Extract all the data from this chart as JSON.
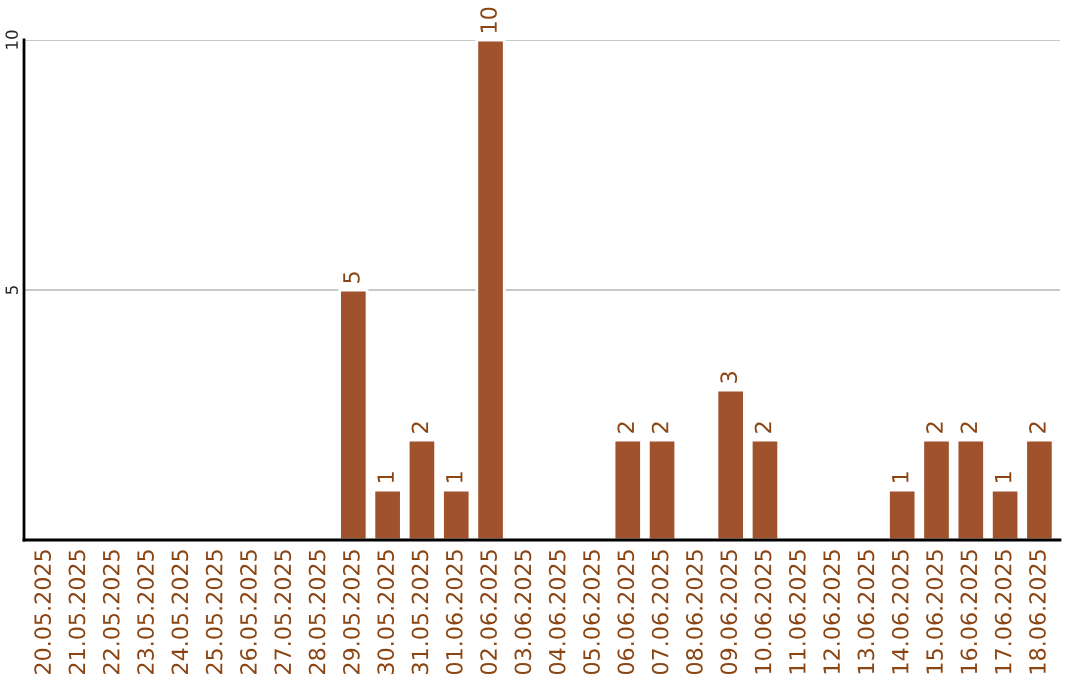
{
  "chart_data": {
    "type": "bar",
    "categories": [
      "20.05.2025",
      "21.05.2025",
      "22.05.2025",
      "23.05.2025",
      "24.05.2025",
      "25.05.2025",
      "26.05.2025",
      "27.05.2025",
      "28.05.2025",
      "29.05.2025",
      "30.05.2025",
      "31.05.2025",
      "01.06.2025",
      "02.06.2025",
      "03.06.2025",
      "04.06.2025",
      "05.06.2025",
      "06.06.2025",
      "07.06.2025",
      "08.06.2025",
      "09.06.2025",
      "10.06.2025",
      "11.06.2025",
      "12.06.2025",
      "13.06.2025",
      "14.06.2025",
      "15.06.2025",
      "16.06.2025",
      "17.06.2025",
      "18.06.2025"
    ],
    "values": [
      null,
      null,
      null,
      null,
      null,
      null,
      null,
      null,
      null,
      5,
      1,
      2,
      1,
      10,
      null,
      null,
      null,
      2,
      2,
      null,
      3,
      2,
      null,
      null,
      null,
      1,
      2,
      2,
      1,
      2
    ],
    "data_labels": true,
    "color": "#a0522d",
    "ylim": [
      0,
      10
    ],
    "yticks": [
      5,
      10
    ],
    "grid": "y"
  }
}
